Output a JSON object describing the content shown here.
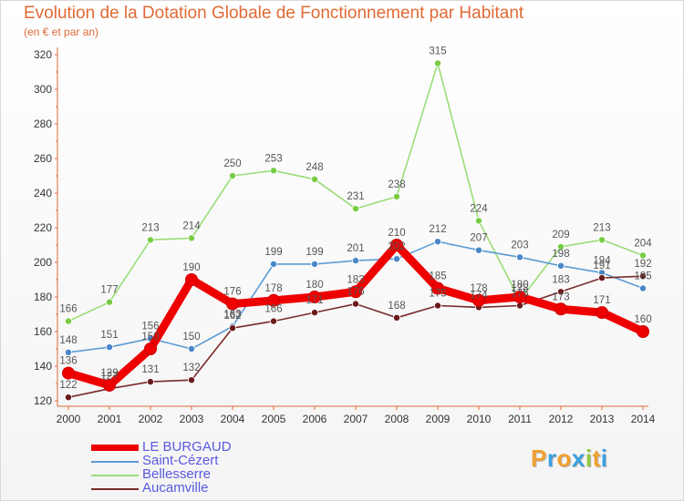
{
  "header": {
    "title": "Evolution de la Dotation Globale de Fonctionnement par Habitant",
    "subtitle": "(en € et par an)"
  },
  "brand": {
    "letters": [
      "P",
      "r",
      "o",
      "x",
      "i",
      "t",
      "i"
    ],
    "colors": [
      "#f0a030",
      "#3aa0e0",
      "#f0a030",
      "#3aa0e0",
      "#90c840",
      "#f0a030",
      "#3aa0e0"
    ]
  },
  "chart_data": {
    "type": "line",
    "title": "Evolution de la Dotation Globale de Fonctionnement par Habitant",
    "subtitle": "(en € et par an)",
    "xlabel": "",
    "ylabel": "",
    "x": [
      2000,
      2001,
      2002,
      2003,
      2004,
      2005,
      2006,
      2007,
      2008,
      2009,
      2010,
      2011,
      2012,
      2013,
      2014
    ],
    "ylim": [
      120,
      320
    ],
    "yticks": [
      120,
      140,
      160,
      180,
      200,
      220,
      240,
      260,
      280,
      300,
      320
    ],
    "grid": false,
    "legend_position": "bottom-left",
    "series": [
      {
        "name": "LE BURGAUD",
        "color": "#ee0000",
        "marker": "#ee0000",
        "values": [
          136,
          129,
          150,
          190,
          176,
          178,
          180,
          183,
          210,
          185,
          178,
          180,
          173,
          171,
          160
        ]
      },
      {
        "name": "Saint-Cézert",
        "color": "#5b9bd5",
        "marker": "#4a86c8",
        "values": [
          148,
          151,
          156,
          150,
          163,
          199,
          199,
          201,
          202,
          212,
          207,
          203,
          198,
          194,
          185
        ]
      },
      {
        "name": "Bellesserre",
        "color": "#99dd77",
        "marker": "#77cc44",
        "values": [
          166,
          177,
          213,
          214,
          250,
          253,
          248,
          231,
          238,
          315,
          224,
          178,
          209,
          213,
          204
        ]
      },
      {
        "name": "Aucamville",
        "color": "#7a2a2a",
        "marker": "#6a1a1a",
        "values": [
          122,
          127,
          131,
          132,
          162,
          166,
          171,
          176,
          168,
          175,
          174,
          175,
          183,
          191,
          192
        ]
      }
    ]
  }
}
